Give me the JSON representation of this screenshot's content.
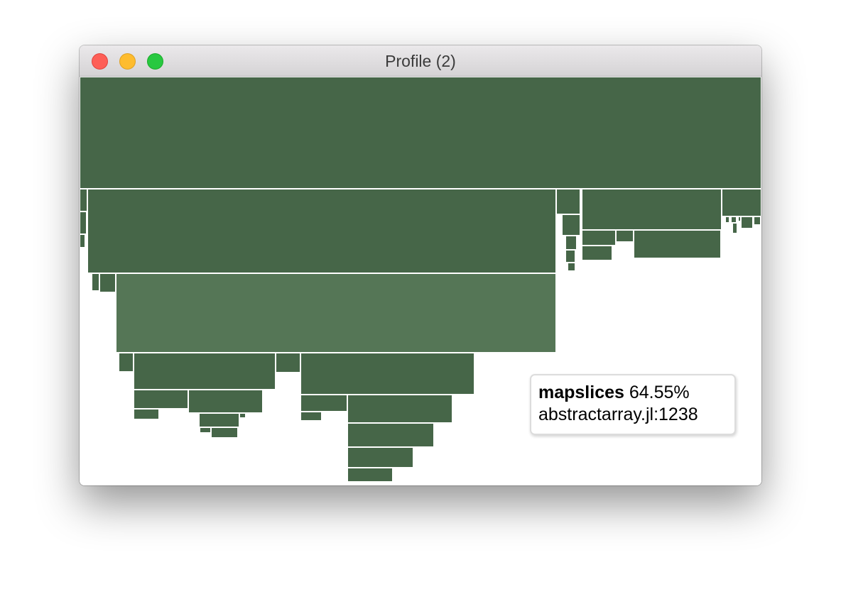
{
  "window": {
    "title": "Profile (2)"
  },
  "colors": {
    "frame": "#466648",
    "highlight": "#557656",
    "divider": "#ffffff"
  },
  "tooltip": {
    "function": "mapslices",
    "percent": "64.55%",
    "location": "abstractarray.jl:1238"
  }
}
